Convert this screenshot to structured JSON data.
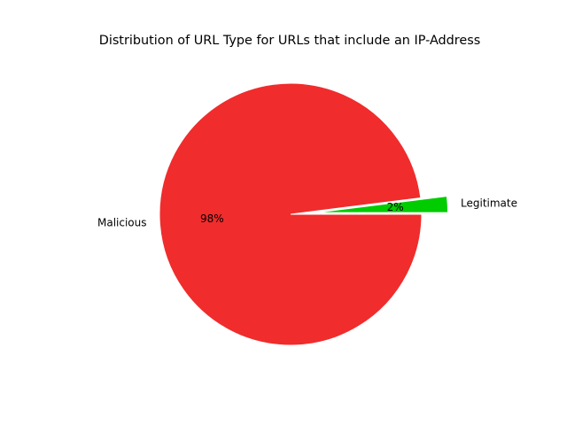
{
  "chart_data": {
    "type": "pie",
    "title": "Distribution of URL Type for URLs that include an IP-Address",
    "slices": [
      {
        "label": "Legitimate",
        "value": 2,
        "pct_label": "2%",
        "color": "#00cc00",
        "exploded": true
      },
      {
        "label": "Malicious",
        "value": 98,
        "pct_label": "98%",
        "color": "#f02c2c",
        "exploded": false
      }
    ],
    "start_angle_deg": 0,
    "direction": "counterclockwise",
    "legend": false
  }
}
